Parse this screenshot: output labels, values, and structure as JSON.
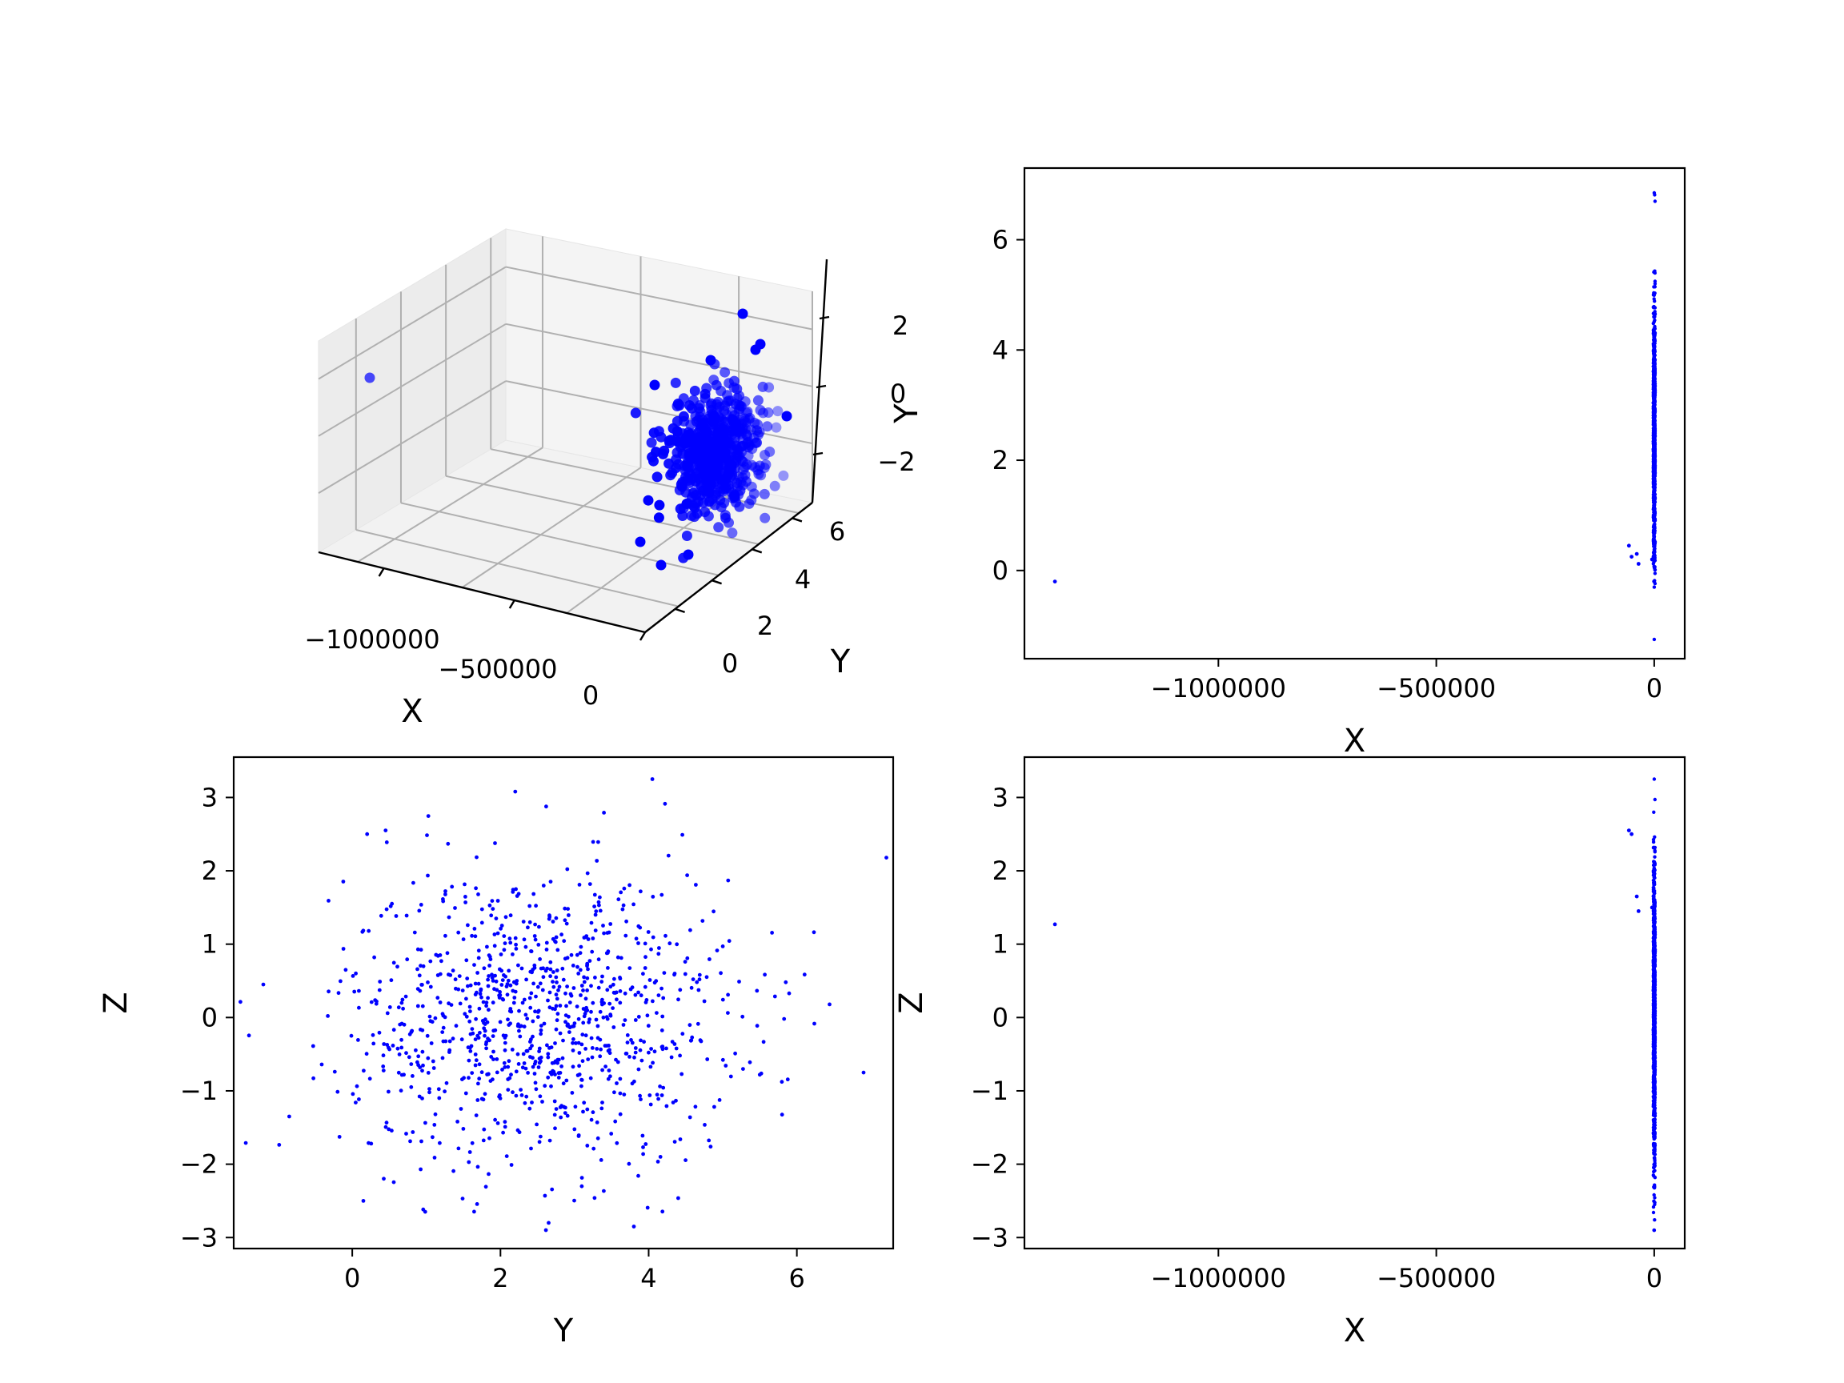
{
  "figure": {
    "background": "#ffffff",
    "marker_color": "#0000ff"
  },
  "chart_data": [
    {
      "id": "3d",
      "type": "scatter",
      "projection": "3d",
      "xlabel": "X",
      "ylabel": "Y",
      "zlabel": "",
      "x_ticks": [
        "−1000000",
        "−500000",
        "0"
      ],
      "y_ticks": [
        "0",
        "2",
        "4",
        "6"
      ],
      "z_ticks": [
        "2",
        "0",
        "−2"
      ],
      "xlim": [
        -1380000,
        0
      ],
      "ylim": [
        -1.3,
        6.9
      ],
      "zlim": [
        -2.9,
        3.3
      ],
      "outlier": {
        "x": -1375000,
        "y": -0.2,
        "z": 1.27
      },
      "n_points": 1000,
      "marker_color": "#0000ff"
    },
    {
      "id": "xy",
      "type": "scatter",
      "xlabel": "X",
      "ylabel": "Y",
      "x_ticks": [
        -1000000,
        -500000,
        0
      ],
      "x_tick_labels": [
        "−1000000",
        "−500000",
        "0"
      ],
      "y_ticks": [
        0,
        2,
        4,
        6
      ],
      "y_tick_labels": [
        "0",
        "2",
        "4",
        "6"
      ],
      "xlim": [
        -1445000,
        70000
      ],
      "ylim": [
        -1.6,
        7.3
      ],
      "column_x": 0,
      "column_y_range": [
        -1.25,
        6.85
      ],
      "outliers": [
        {
          "x": -1375000,
          "y": -0.2
        },
        {
          "x": -58000,
          "y": 0.45
        },
        {
          "x": -52000,
          "y": 0.25
        },
        {
          "x": -40000,
          "y": 0.3
        },
        {
          "x": -36000,
          "y": 0.12
        },
        {
          "x": -5000,
          "y": 0.2
        }
      ],
      "marker_color": "#0000ff"
    },
    {
      "id": "yz",
      "type": "scatter",
      "xlabel": "Y",
      "ylabel": "Z",
      "x_ticks": [
        0,
        2,
        4,
        6
      ],
      "x_tick_labels": [
        "0",
        "2",
        "4",
        "6"
      ],
      "y_ticks": [
        -3,
        -2,
        -1,
        0,
        1,
        2,
        3
      ],
      "y_tick_labels": [
        "−3",
        "−2",
        "−1",
        "0",
        "1",
        "2",
        "3"
      ],
      "xlim": [
        -1.6,
        7.3
      ],
      "ylim": [
        -3.15,
        3.55
      ],
      "cloud_center": [
        2.5,
        0
      ],
      "cloud_spread": [
        1.3,
        1.0
      ],
      "n_points": 1000,
      "visible_points": [
        {
          "x": 6.9,
          "y": -0.75
        },
        {
          "x": 5.85,
          "y": 0.48
        },
        {
          "x": -1.2,
          "y": 0.45
        },
        {
          "x": 2.2,
          "y": 3.08
        },
        {
          "x": 4.05,
          "y": 3.25
        },
        {
          "x": -0.85,
          "y": -1.35
        },
        {
          "x": 0.15,
          "y": -2.5
        },
        {
          "x": 2.65,
          "y": -2.8
        },
        {
          "x": 3.8,
          "y": -2.85
        },
        {
          "x": 0.45,
          "y": 2.55
        },
        {
          "x": 0.2,
          "y": 2.5
        },
        {
          "x": 5.5,
          "y": -0.78
        }
      ],
      "marker_color": "#0000ff"
    },
    {
      "id": "xz",
      "type": "scatter",
      "xlabel": "X",
      "ylabel": "Z",
      "x_ticks": [
        -1000000,
        -500000,
        0
      ],
      "x_tick_labels": [
        "−1000000",
        "−500000",
        "0"
      ],
      "y_ticks": [
        -3,
        -2,
        -1,
        0,
        1,
        2,
        3
      ],
      "y_tick_labels": [
        "−3",
        "−2",
        "−1",
        "0",
        "1",
        "2",
        "3"
      ],
      "xlim": [
        -1445000,
        70000
      ],
      "ylim": [
        -3.15,
        3.55
      ],
      "column_x": 0,
      "column_z_range": [
        -2.9,
        3.25
      ],
      "outliers": [
        {
          "x": -1375000,
          "y": 1.27
        },
        {
          "x": -58000,
          "y": 2.55
        },
        {
          "x": -52000,
          "y": 2.5
        },
        {
          "x": -40000,
          "y": 1.65
        },
        {
          "x": -36000,
          "y": 1.45
        },
        {
          "x": -5000,
          "y": 1.5
        }
      ],
      "marker_color": "#0000ff"
    }
  ]
}
